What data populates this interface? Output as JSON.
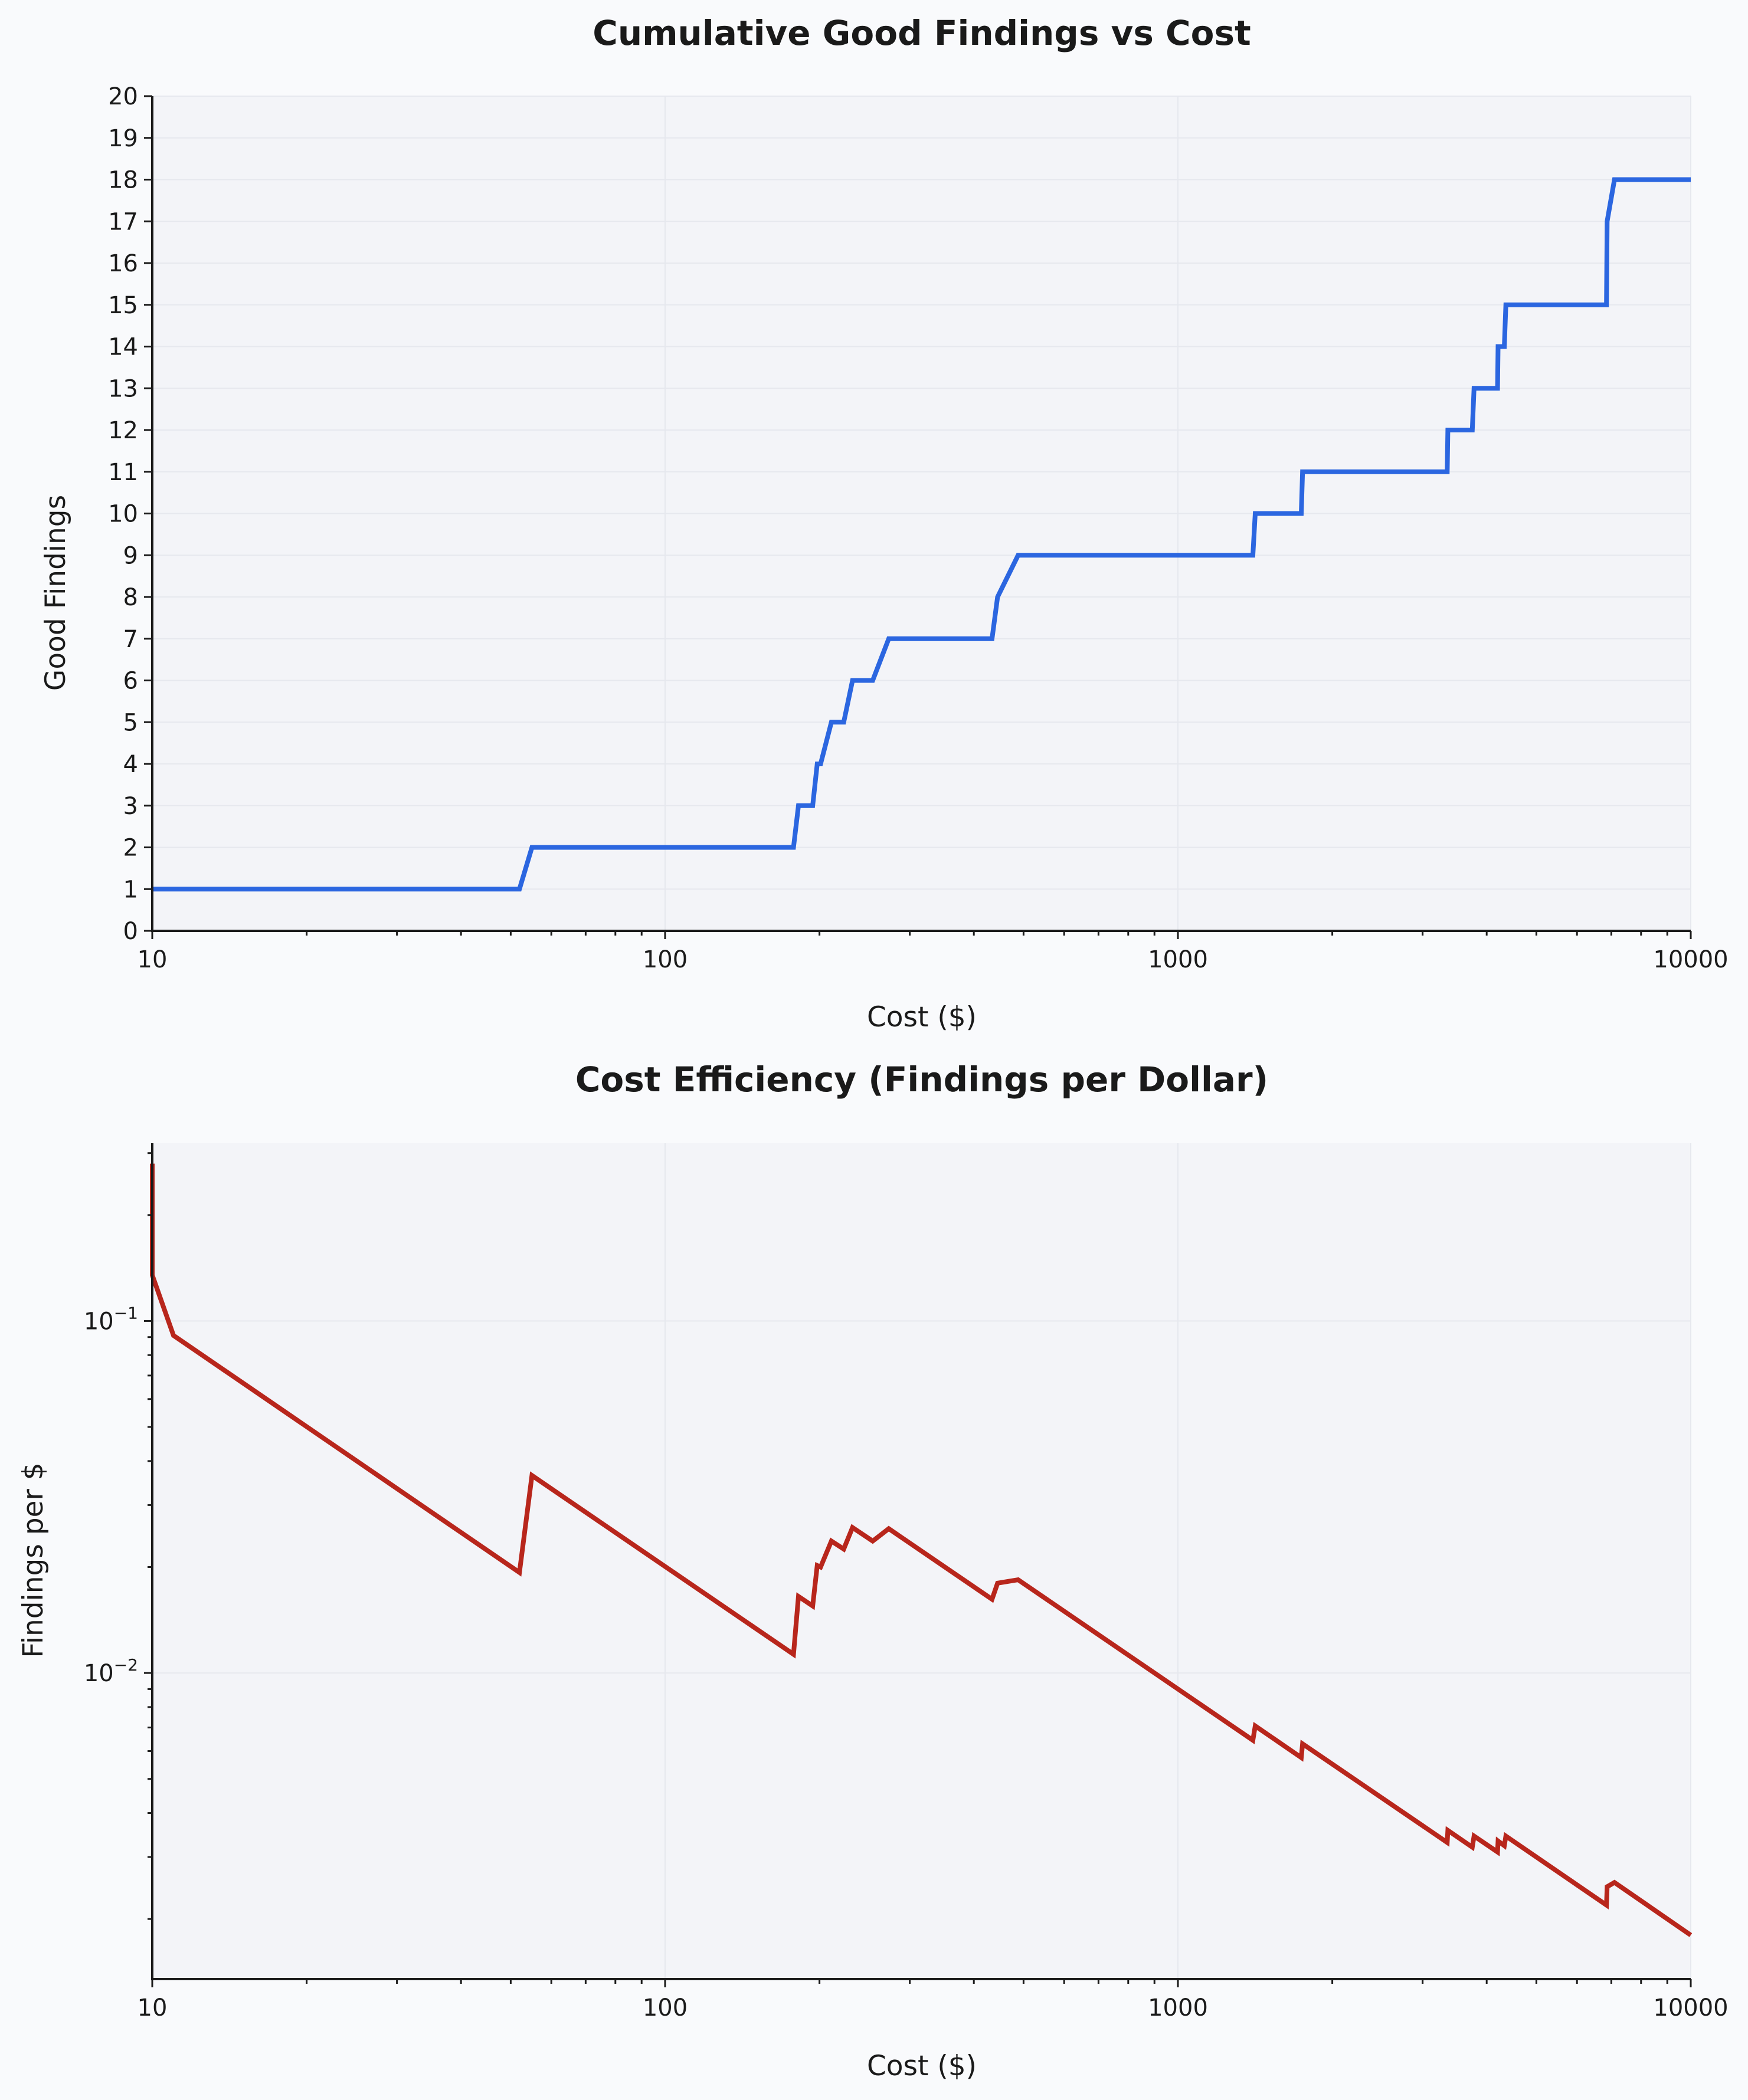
{
  "colors": {
    "background": "#f9fafc",
    "plot_bg": "#f3f4f8",
    "series1": "#2b66e0",
    "series2": "#b8261c",
    "grid": "#e6e8ee",
    "text": "#1a1a1a"
  },
  "chart_data": [
    {
      "type": "line",
      "step": true,
      "title": "Cumulative Good Findings vs Cost",
      "xlabel": "Cost ($)",
      "ylabel": "Good Findings",
      "xscale": "log",
      "xlim": [
        10,
        10000
      ],
      "ylim": [
        0,
        20
      ],
      "grid": true,
      "x_ticks": [
        10,
        100,
        1000,
        10000
      ],
      "x_tick_labels": [
        "10",
        "100",
        "1000",
        "10000"
      ],
      "y_ticks": [
        0,
        1,
        2,
        3,
        4,
        5,
        6,
        7,
        8,
        9,
        10,
        11,
        12,
        13,
        14,
        15,
        16,
        17,
        18,
        19,
        20
      ],
      "y_tick_labels": [
        "0",
        "1",
        "2",
        "3",
        "4",
        "5",
        "6",
        "7",
        "8",
        "9",
        "10",
        "11",
        "12",
        "13",
        "14",
        "15",
        "16",
        "17",
        "18",
        "19",
        "20"
      ],
      "series": [
        {
          "points": [
            [
              10,
              1
            ],
            [
              52,
              1
            ],
            [
              55,
              2
            ],
            [
              178,
              2
            ],
            [
              182,
              3
            ],
            [
              194,
              3
            ],
            [
              198,
              4
            ],
            [
              201,
              4
            ],
            [
              211,
              5
            ],
            [
              223,
              5
            ],
            [
              232,
              6
            ],
            [
              254,
              6
            ],
            [
              273,
              7
            ],
            [
              434,
              7
            ],
            [
              445,
              8
            ],
            [
              488,
              9
            ],
            [
              1400,
              9
            ],
            [
              1415,
              10
            ],
            [
              1740,
              10
            ],
            [
              1750,
              11
            ],
            [
              3350,
              11
            ],
            [
              3360,
              12
            ],
            [
              3750,
              12
            ],
            [
              3780,
              13
            ],
            [
              4200,
              13
            ],
            [
              4210,
              14
            ],
            [
              4330,
              14
            ],
            [
              4360,
              15
            ],
            [
              6850,
              15
            ],
            [
              6870,
              17
            ],
            [
              7100,
              18
            ],
            [
              10000,
              18
            ]
          ]
        }
      ]
    },
    {
      "type": "line",
      "title": "Cost Efficiency (Findings per Dollar)",
      "xlabel": "Cost ($)",
      "ylabel": "Findings per $",
      "xscale": "log",
      "yscale": "log",
      "xlim": [
        10,
        10000
      ],
      "ylim": [
        0.00135,
        0.32
      ],
      "grid": true,
      "x_ticks": [
        10,
        100,
        1000,
        10000
      ],
      "x_tick_labels": [
        "10",
        "100",
        "1000",
        "10000"
      ],
      "y_ticks": [
        0.01,
        0.1
      ],
      "y_tick_labels": [
        {
          "base": "10",
          "exp": "−2"
        },
        {
          "base": "10",
          "exp": "−1"
        }
      ],
      "series": [
        {
          "points": [
            [
              10,
              0.28
            ],
            [
              10,
              0.135
            ],
            [
              11,
              0.091
            ],
            [
              52,
              0.0193
            ],
            [
              55,
              0.0364
            ],
            [
              178,
              0.0113
            ],
            [
              182,
              0.0165
            ],
            [
              194,
              0.0155
            ],
            [
              198,
              0.0202
            ],
            [
              201,
              0.02
            ],
            [
              211,
              0.0237
            ],
            [
              223,
              0.0225
            ],
            [
              232,
              0.0259
            ],
            [
              254,
              0.0237
            ],
            [
              273,
              0.0257
            ],
            [
              434,
              0.0162
            ],
            [
              445,
              0.018
            ],
            [
              488,
              0.0184
            ],
            [
              1400,
              0.00644
            ],
            [
              1415,
              0.00707
            ],
            [
              1740,
              0.00575
            ],
            [
              1750,
              0.00629
            ],
            [
              3350,
              0.0033
            ],
            [
              3360,
              0.00357
            ],
            [
              3750,
              0.0032
            ],
            [
              3780,
              0.00344
            ],
            [
              4200,
              0.0031
            ],
            [
              4210,
              0.00333
            ],
            [
              4330,
              0.00323
            ],
            [
              4360,
              0.00344
            ],
            [
              6850,
              0.00219
            ],
            [
              6870,
              0.00247
            ],
            [
              7100,
              0.00254
            ],
            [
              10000,
              0.0018
            ]
          ]
        }
      ]
    }
  ]
}
